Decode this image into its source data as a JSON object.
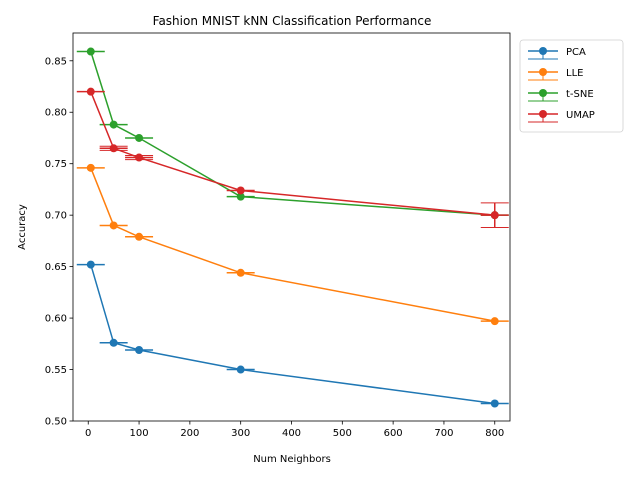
{
  "chart_data": {
    "type": "line",
    "title": "Fashion MNIST kNN Classification Performance",
    "xlabel": "Num Neighbors",
    "ylabel": "Accuracy",
    "xlim": [
      -30,
      830
    ],
    "ylim": [
      0.5,
      0.877
    ],
    "xticks": [
      0,
      100,
      200,
      300,
      400,
      500,
      600,
      700,
      800
    ],
    "yticks": [
      0.5,
      0.55,
      0.6,
      0.65,
      0.7,
      0.75,
      0.8,
      0.85
    ],
    "ytick_labels": [
      "0.50",
      "0.55",
      "0.60",
      "0.65",
      "0.70",
      "0.75",
      "0.80",
      "0.85"
    ],
    "grid": false,
    "legend_position": "outside upper right",
    "x": [
      5,
      50,
      100,
      300,
      800
    ],
    "series": [
      {
        "name": "PCA",
        "color": "#1f77b4",
        "values": [
          0.652,
          0.576,
          0.569,
          0.55,
          0.517
        ],
        "yerr": [
          0.0,
          0.0,
          0.0,
          0.0,
          0.0
        ]
      },
      {
        "name": "LLE",
        "color": "#ff7f0e",
        "values": [
          0.746,
          0.69,
          0.679,
          0.644,
          0.597
        ],
        "yerr": [
          0.0,
          0.0,
          0.0,
          0.0,
          0.0
        ]
      },
      {
        "name": "t-SNE",
        "color": "#2ca02c",
        "values": [
          0.859,
          0.788,
          0.775,
          0.718,
          0.7
        ],
        "yerr": [
          0.0,
          0.0,
          0.0,
          0.0,
          0.0
        ]
      },
      {
        "name": "UMAP",
        "color": "#d62728",
        "values": [
          0.82,
          0.765,
          0.756,
          0.724,
          0.7
        ],
        "yerr": [
          0.0,
          0.002,
          0.002,
          0.0,
          0.012
        ]
      }
    ]
  }
}
